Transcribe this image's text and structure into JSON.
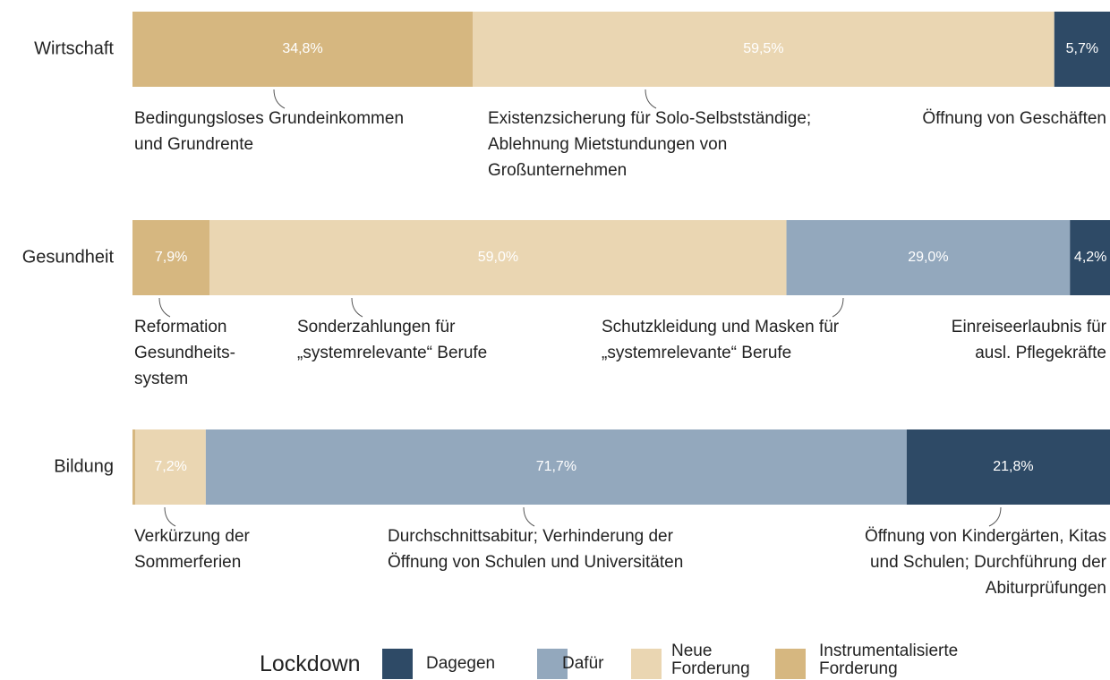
{
  "chart_data": {
    "type": "stacked_bar_horizontal",
    "categories": [
      "Wirtschaft",
      "Gesundheit",
      "Bildung"
    ],
    "xlim": [
      0,
      100
    ],
    "series": [
      {
        "name": "Dagegen",
        "color": "#2e4a66",
        "values": [
          5.7,
          4.2,
          21.8
        ],
        "value_labels": [
          "5,7%",
          "4,2%",
          "21,8%"
        ]
      },
      {
        "name": "Dafür",
        "color": "#93a8bd",
        "values": [
          0,
          29.0,
          71.7
        ],
        "value_labels": [
          null,
          "29,0%",
          "71,7%"
        ]
      },
      {
        "name": "Neue Forderung",
        "color": "#ead6b2",
        "values": [
          59.5,
          59.0,
          7.2
        ],
        "value_labels": [
          "59,5%",
          "59,0%",
          "7,2%"
        ]
      },
      {
        "name": "Instrumentalisierte Forderung",
        "color": "#d6b780",
        "values": [
          34.8,
          7.9,
          0.3
        ],
        "value_labels": [
          "34,8%",
          "7,9%",
          null
        ]
      }
    ],
    "legend_title": "Lockdown",
    "annotations": [
      {
        "lines": [
          "Bedingungsloses Grundeinkommen",
          "und Grundrente"
        ]
      },
      {
        "lines": [
          "Existenzsicherung für Solo-Selbstständige;",
          "Ablehnung Mietstundungen von",
          "Großunternehmen"
        ]
      },
      {
        "lines": [
          "Öffnung von Geschäften"
        ]
      },
      {
        "lines": [
          "Reformation",
          "Gesundheits-",
          "system"
        ]
      },
      {
        "lines": [
          "Sonderzahlungen für",
          "„systemrelevante“ Berufe"
        ]
      },
      {
        "lines": [
          "Schutzkleidung und Masken für",
          "„systemrelevante“ Berufe"
        ]
      },
      {
        "lines": [
          "Einreiseerlaubnis für",
          "ausl. Pflegekräfte"
        ]
      },
      {
        "lines": [
          "Verkürzung der",
          "Sommerferien"
        ]
      },
      {
        "lines": [
          "Durchschnittsabitur; Verhinderung der",
          "Öffnung von Schulen und Universitäten"
        ]
      },
      {
        "lines": [
          "Öffnung von Kindergärten, Kitas",
          "und Schulen; Durchführung der",
          "Abiturprüfungen"
        ]
      }
    ]
  }
}
